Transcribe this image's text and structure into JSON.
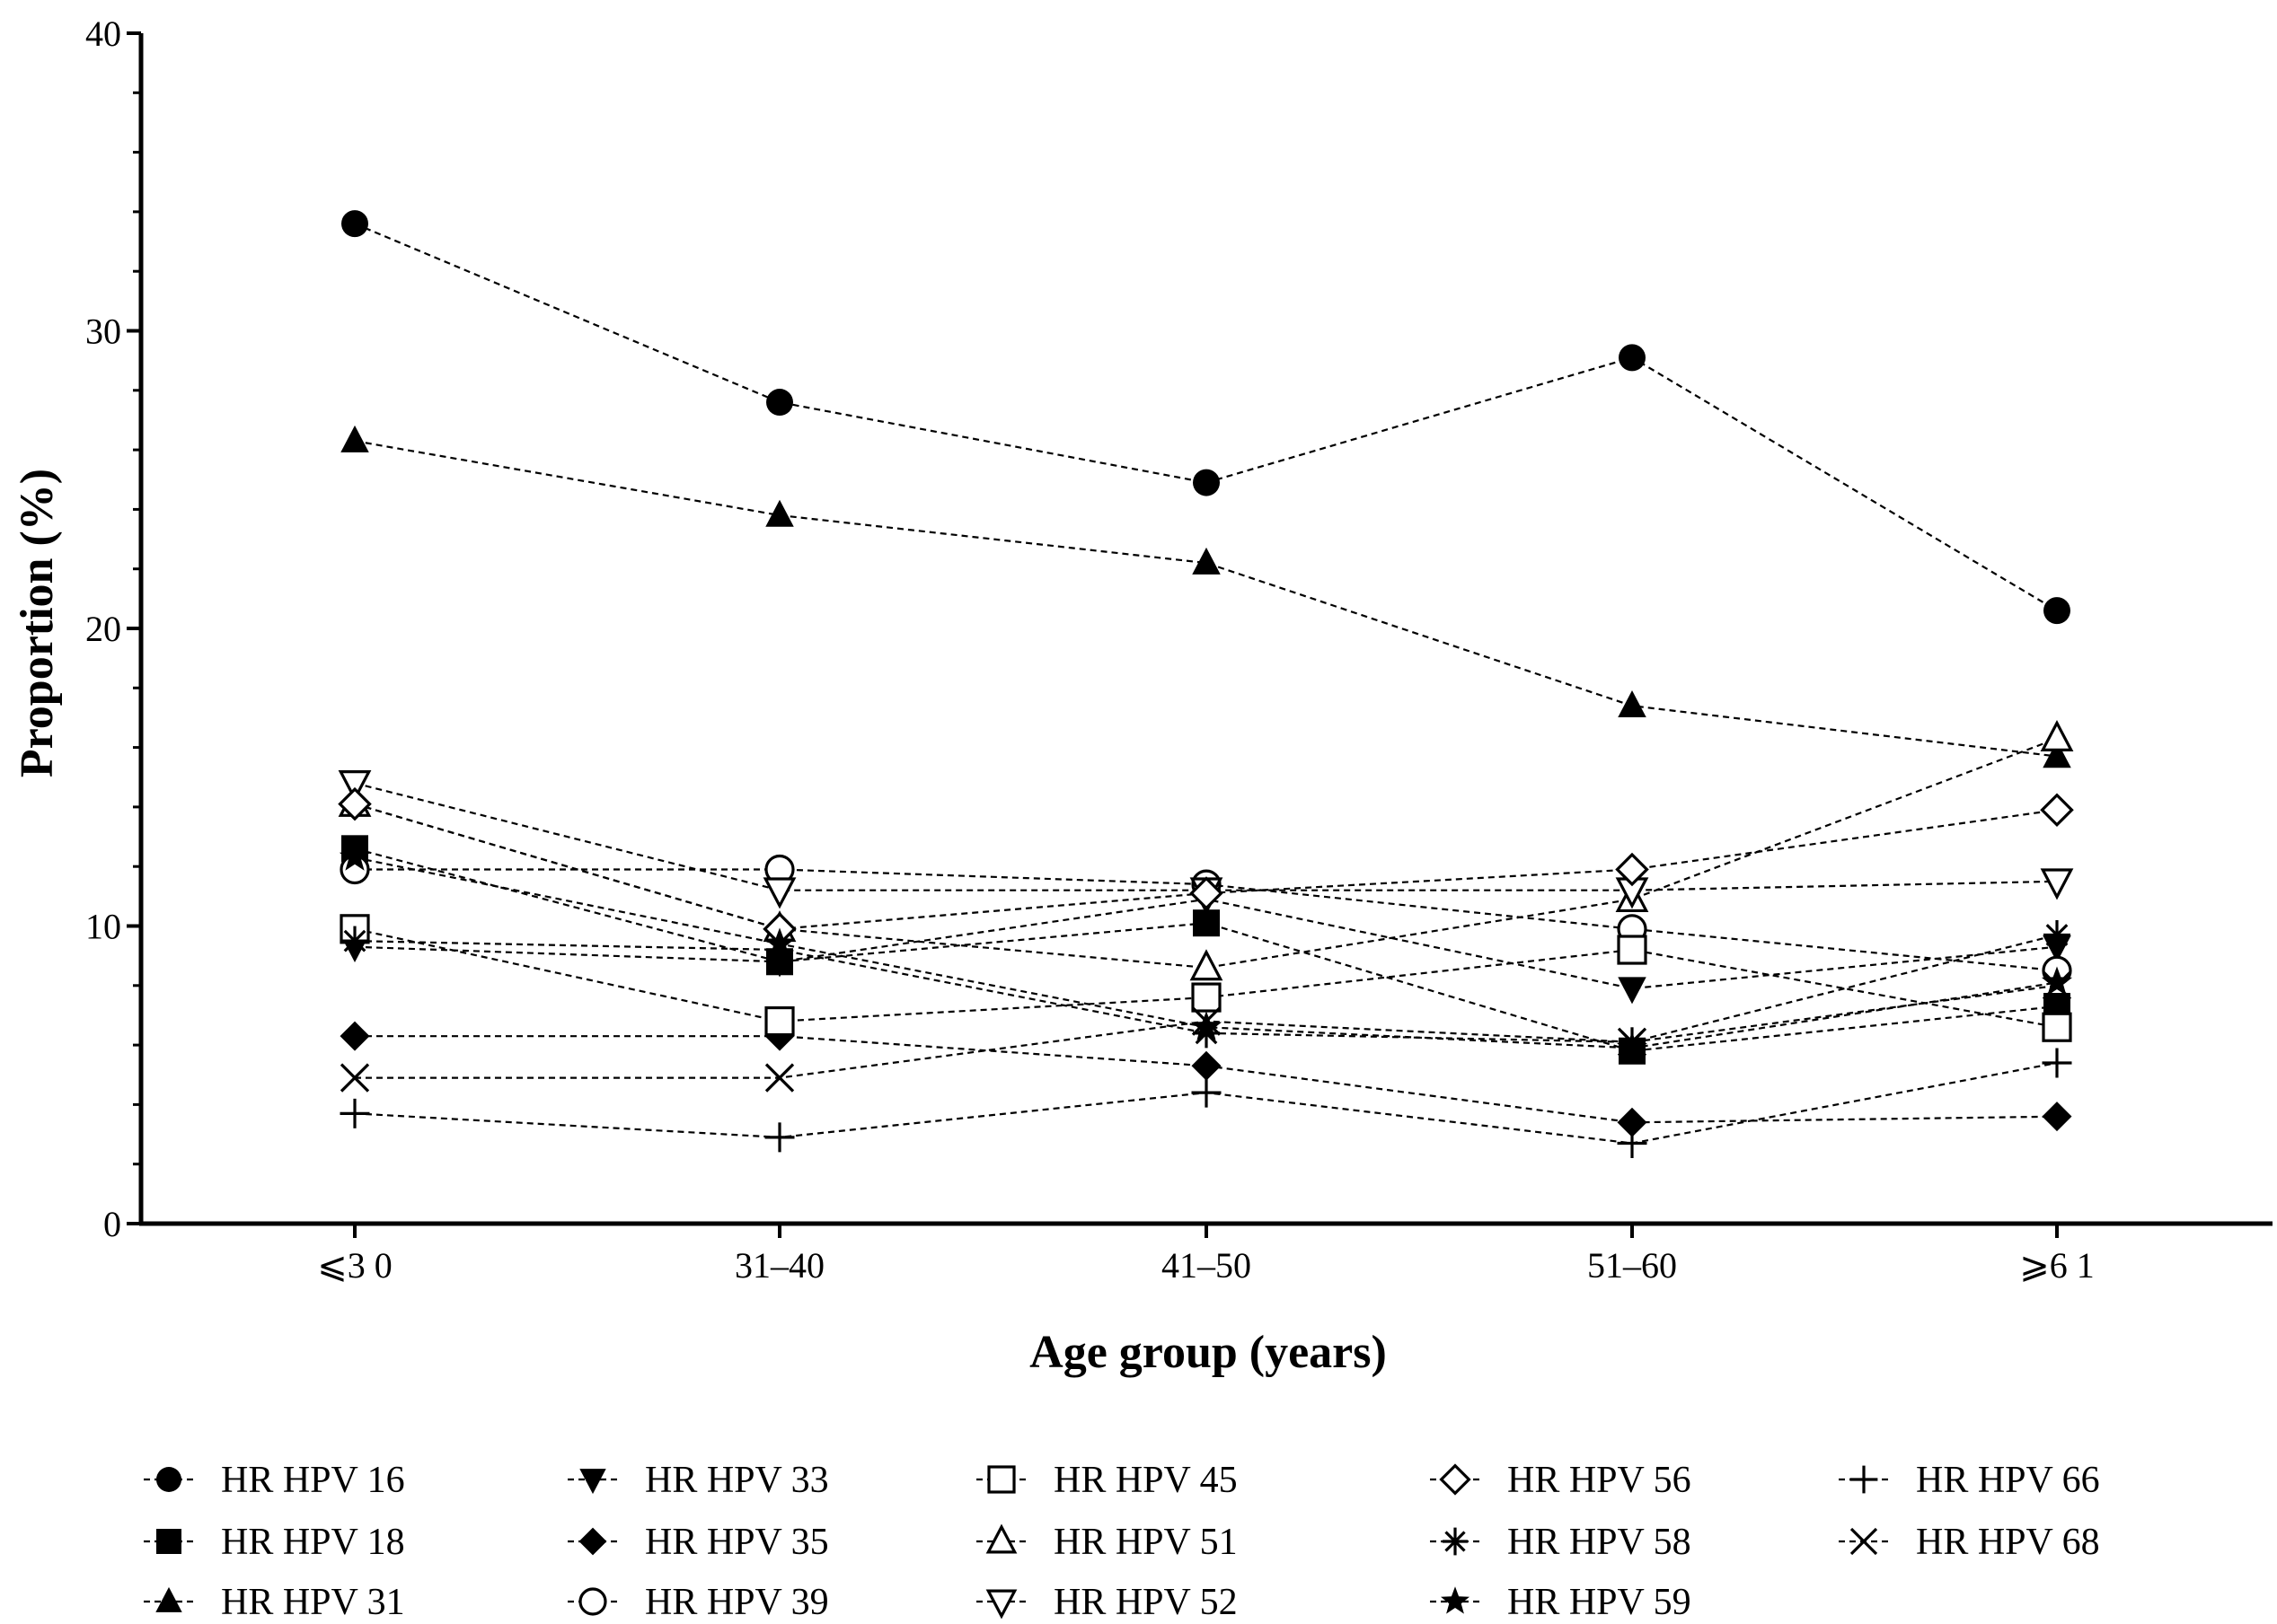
{
  "chart_data": {
    "type": "line",
    "title": "",
    "xlabel": "Age group (years)",
    "ylabel": "Proportion (%)",
    "categories": [
      "≤30",
      "31–40",
      "41–50",
      "51–60",
      "≥61"
    ],
    "category_labels": [
      "⩽3 0",
      "31–40",
      "41–50",
      "51–60",
      "⩾6 1"
    ],
    "ylim": [
      0,
      40
    ],
    "yticks": [
      "0",
      "10",
      "20",
      "30",
      "40"
    ],
    "grid": false,
    "legend_position": "bottom",
    "series": [
      {
        "name": "HR HPV 16",
        "marker": "circle-filled",
        "values": [
          33.6,
          27.6,
          24.9,
          29.1,
          20.6
        ]
      },
      {
        "name": "HR HPV 18",
        "marker": "square-filled",
        "values": [
          12.6,
          8.8,
          10.1,
          5.8,
          7.3
        ]
      },
      {
        "name": "HR HPV 31",
        "marker": "triangle-up-filled",
        "values": [
          26.3,
          23.8,
          22.2,
          17.4,
          15.7
        ]
      },
      {
        "name": "HR HPV 33",
        "marker": "triangle-down-filled",
        "values": [
          9.3,
          8.8,
          10.9,
          7.9,
          9.3
        ]
      },
      {
        "name": "HR HPV 35",
        "marker": "diamond-filled",
        "values": [
          6.3,
          6.3,
          5.3,
          3.4,
          3.6
        ]
      },
      {
        "name": "HR HPV 39",
        "marker": "circle-open",
        "values": [
          11.9,
          11.9,
          11.4,
          9.9,
          8.5
        ]
      },
      {
        "name": "HR HPV 45",
        "marker": "square-open",
        "values": [
          9.9,
          6.8,
          7.6,
          9.2,
          6.6
        ]
      },
      {
        "name": "HR HPV 51",
        "marker": "triangle-up-open",
        "values": [
          14.1,
          9.9,
          8.6,
          10.9,
          16.3
        ]
      },
      {
        "name": "HR HPV 52",
        "marker": "triangle-down-open",
        "values": [
          14.8,
          11.2,
          11.2,
          11.2,
          11.5
        ]
      },
      {
        "name": "HR HPV 56",
        "marker": "diamond-open",
        "values": [
          14.1,
          9.9,
          11.1,
          11.9,
          13.9
        ]
      },
      {
        "name": "HR HPV 58",
        "marker": "asterisk",
        "values": [
          9.5,
          9.2,
          6.4,
          6.1,
          9.7
        ]
      },
      {
        "name": "HR HPV 59",
        "marker": "star-filled",
        "values": [
          12.3,
          9.4,
          6.6,
          5.9,
          8.1
        ]
      },
      {
        "name": "HR HPV 66",
        "marker": "plus",
        "values": [
          3.7,
          2.9,
          4.4,
          2.7,
          5.4
        ]
      },
      {
        "name": "HR HPV 68",
        "marker": "cross",
        "values": [
          4.9,
          4.9,
          6.8,
          6.1,
          8.0
        ]
      }
    ]
  }
}
